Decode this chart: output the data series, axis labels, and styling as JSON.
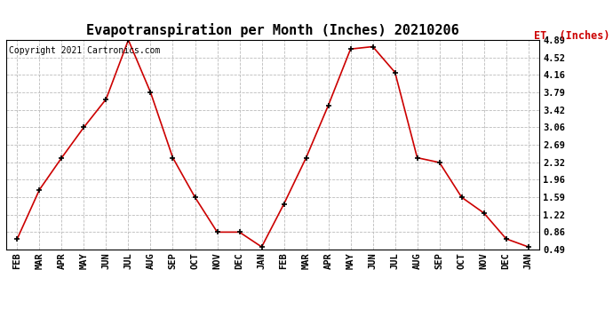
{
  "title": "Evapotranspiration per Month (Inches) 20210206",
  "copyright_text": "Copyright 2021 Cartronics.com",
  "legend_text": "ET  (Inches)",
  "months": [
    "FEB",
    "MAR",
    "APR",
    "MAY",
    "JUN",
    "JUL",
    "AUG",
    "SEP",
    "OCT",
    "NOV",
    "DEC",
    "JAN",
    "FEB",
    "MAR",
    "APR",
    "MAY",
    "JUN",
    "JUL",
    "AUG",
    "SEP",
    "OCT",
    "NOV",
    "DEC",
    "JAN"
  ],
  "values": [
    0.72,
    1.75,
    2.42,
    3.06,
    3.65,
    4.89,
    3.79,
    2.42,
    1.59,
    0.86,
    0.86,
    0.55,
    1.45,
    2.42,
    3.52,
    4.7,
    4.75,
    4.21,
    2.42,
    2.32,
    1.59,
    1.26,
    0.72,
    0.55
  ],
  "yticks": [
    0.49,
    0.86,
    1.22,
    1.59,
    1.96,
    2.32,
    2.69,
    3.06,
    3.42,
    3.79,
    4.16,
    4.52,
    4.89
  ],
  "ymin": 0.49,
  "ymax": 4.89,
  "line_color": "#cc0000",
  "marker_color": "#000000",
  "background_color": "#ffffff",
  "grid_color": "#bbbbbb",
  "title_fontsize": 11,
  "tick_fontsize": 7.5,
  "copyright_fontsize": 7,
  "legend_fontsize": 8.5,
  "legend_color": "#cc0000"
}
